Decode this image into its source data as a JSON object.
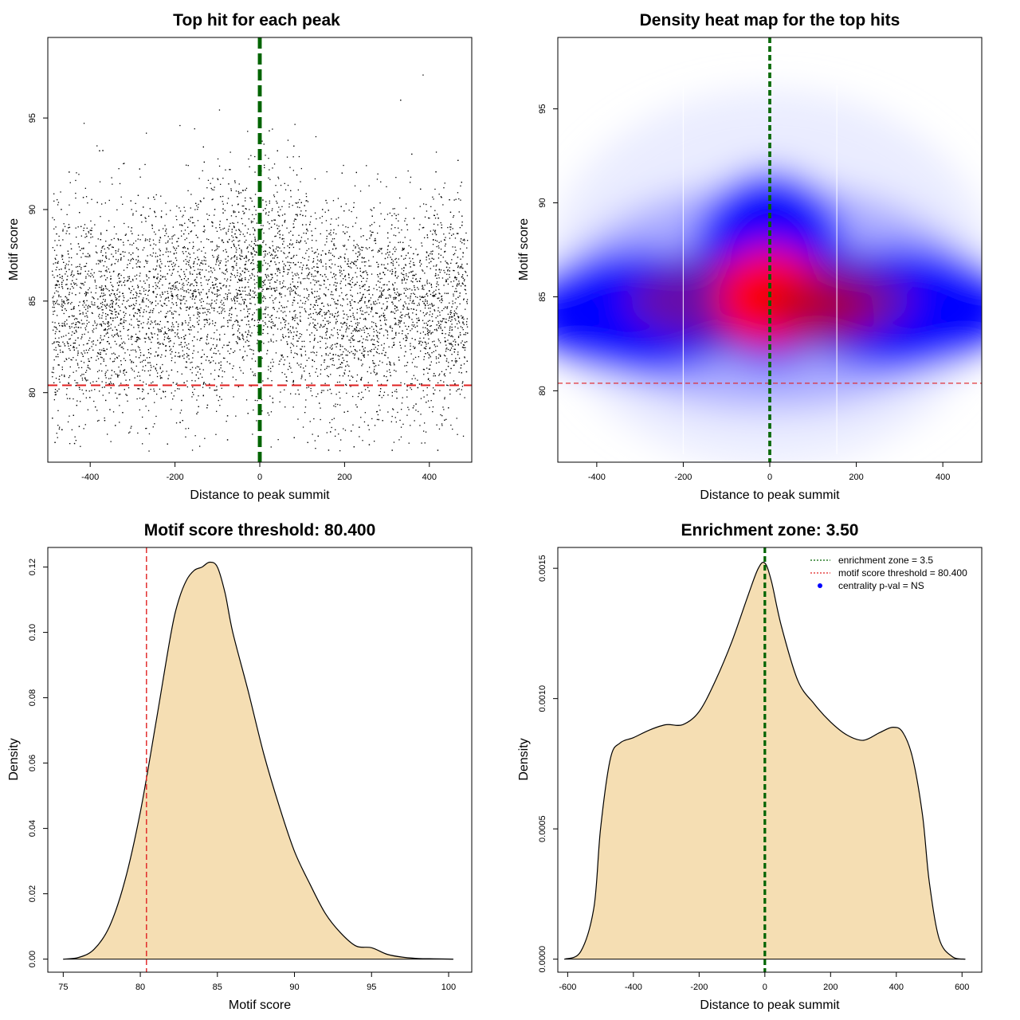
{
  "colors": {
    "threshold_line": "#e02020",
    "zone_line": "#006400",
    "density_fill": "#f5deb3",
    "heat_low": "#ffffff",
    "heat_mid": "#0000ff",
    "heat_high": "#ff0000",
    "points": "#000000"
  },
  "chart_data": [
    {
      "id": "scatter",
      "type": "scatter",
      "title": "Top hit for each peak",
      "xlabel": "Distance to peak summit",
      "ylabel": "Motif score",
      "xlim": [
        -500,
        500
      ],
      "ylim": [
        76.2,
        99.4
      ],
      "xticks": [
        -400,
        -200,
        0,
        200,
        400
      ],
      "yticks": [
        80,
        85,
        90,
        95
      ],
      "point_distribution": {
        "n": 6500,
        "x_range": [
          -490,
          490
        ],
        "score_center": 84.5,
        "score_sd": 3.0,
        "central_boost": "higher scores near 0"
      },
      "threshold_y": 80.4,
      "zone_x": [
        -1.75,
        1.75
      ],
      "grid": false
    },
    {
      "id": "heatmap",
      "type": "heatmap",
      "title": "Density heat map for the top hits",
      "xlabel": "Distance to peak summit",
      "ylabel": "Motif score",
      "xlim": [
        -490,
        490
      ],
      "ylim": [
        76.2,
        98.8
      ],
      "xticks": [
        -400,
        -200,
        0,
        200,
        400
      ],
      "yticks": [
        80,
        85,
        90,
        95
      ],
      "density_peak": {
        "x": 0,
        "y": 85
      },
      "threshold_y": 80.4,
      "zone_x": [
        -1.75,
        1.75
      ],
      "grid": false
    },
    {
      "id": "score_density",
      "type": "area",
      "title": "Motif score threshold: 80.400",
      "xlabel": "Motif score",
      "ylabel": "Density",
      "xlim": [
        74.0,
        101.5
      ],
      "ylim": [
        -0.004,
        0.126
      ],
      "xticks": [
        75,
        80,
        85,
        90,
        95,
        100
      ],
      "yticks": [
        0.0,
        0.02,
        0.04,
        0.06,
        0.08,
        0.1,
        0.12
      ],
      "ytick_labels": [
        "0.00",
        "0.02",
        "0.04",
        "0.06",
        "0.08",
        "0.10",
        "0.12"
      ],
      "x": [
        75,
        76,
        77,
        78,
        79,
        80,
        81,
        82,
        82.5,
        83,
        83.5,
        84,
        84.5,
        85,
        85.5,
        86,
        87,
        88,
        89,
        90,
        91,
        92,
        93,
        94,
        95,
        96,
        97,
        98,
        99,
        100.3
      ],
      "y": [
        0.0,
        0.0005,
        0.003,
        0.01,
        0.024,
        0.045,
        0.072,
        0.1,
        0.11,
        0.116,
        0.119,
        0.12,
        0.1215,
        0.12,
        0.112,
        0.1,
        0.082,
        0.063,
        0.047,
        0.033,
        0.023,
        0.014,
        0.008,
        0.004,
        0.0035,
        0.0015,
        0.0006,
        0.0002,
        0.0001,
        0.0
      ],
      "threshold_x": 80.4,
      "grid": false
    },
    {
      "id": "distance_density",
      "type": "area",
      "title": "Enrichment zone: 3.50",
      "xlabel": "Distance to peak summit",
      "ylabel": "Density",
      "xlim": [
        -630,
        660
      ],
      "ylim": [
        -5e-05,
        0.00158
      ],
      "xticks": [
        -600,
        -400,
        -200,
        0,
        200,
        400,
        600
      ],
      "yticks": [
        0.0,
        0.0005,
        0.001,
        0.0015
      ],
      "ytick_labels": [
        "0.0000",
        "0.0005",
        "0.0010",
        "0.0015"
      ],
      "x": [
        -610,
        -560,
        -520,
        -500,
        -470,
        -440,
        -400,
        -350,
        -300,
        -250,
        -200,
        -150,
        -100,
        -50,
        -20,
        0,
        20,
        50,
        100,
        150,
        200,
        250,
        300,
        350,
        390,
        420,
        450,
        480,
        500,
        530,
        570,
        610
      ],
      "y": [
        0.0,
        3e-05,
        0.0002,
        0.0005,
        0.00077,
        0.00083,
        0.00085,
        0.00088,
        0.0009,
        0.0009,
        0.00095,
        0.00107,
        0.00122,
        0.0014,
        0.0015,
        0.00152,
        0.00145,
        0.00128,
        0.00107,
        0.00098,
        0.00091,
        0.00086,
        0.00084,
        0.00087,
        0.00089,
        0.00087,
        0.00077,
        0.00055,
        0.0003,
        8e-05,
        1e-05,
        0.0
      ],
      "zone_x": [
        -1.75,
        1.75
      ],
      "legend_position": "top-right",
      "legend": [
        {
          "label": "enrichment zone = 3.5",
          "style": "dotted",
          "color": "#006400"
        },
        {
          "label": "motif score threshold = 80.400",
          "style": "dotted",
          "color": "#e02020"
        },
        {
          "label": "centrality p-val = NS",
          "style": "point",
          "color": "#0000ff"
        }
      ],
      "grid": false
    }
  ]
}
